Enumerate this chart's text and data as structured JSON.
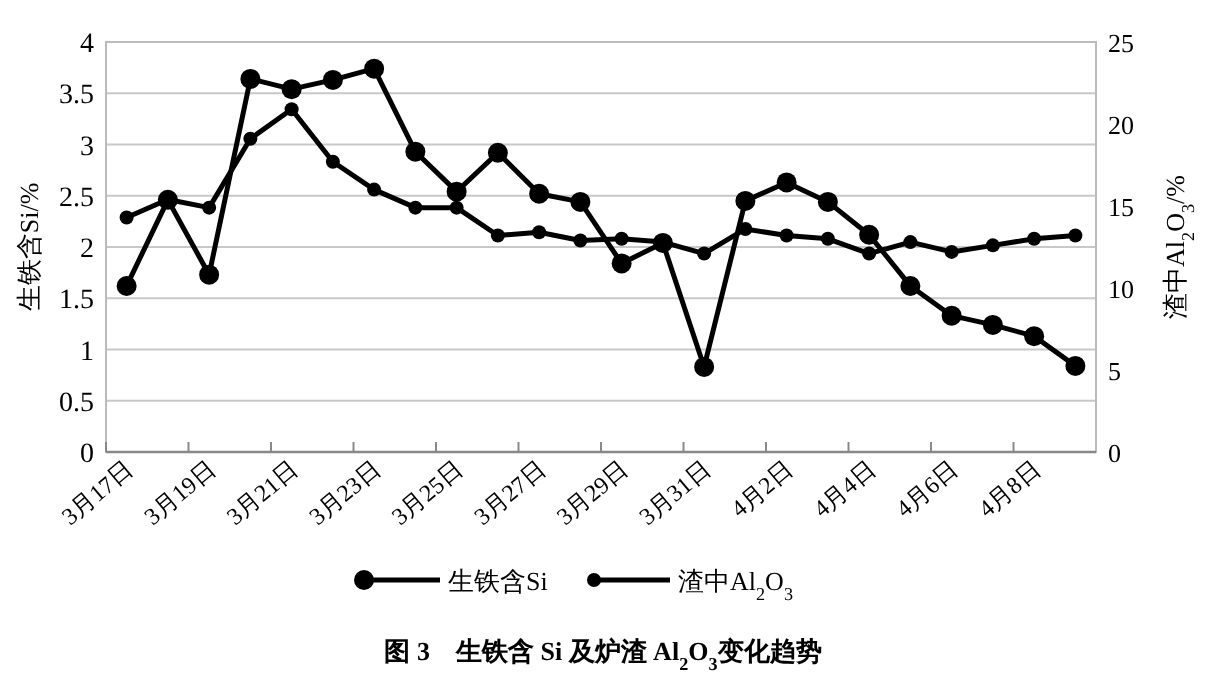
{
  "chart_data": {
    "type": "line",
    "title": "图 3　生铁含 Si 及炉渣 Al$_{2}$O$_{3}$变化趋势",
    "ylabel": "生铁含Si/%",
    "y2label": "渣中Al$_{2}$O$_{3}$/%",
    "categories": [
      "3月17日",
      null,
      "3月19日",
      null,
      "3月21日",
      null,
      "3月23日",
      null,
      "3月25日",
      null,
      "3月27日",
      null,
      "3月29日",
      null,
      "3月31日",
      null,
      "4月2日",
      null,
      "4月4日",
      null,
      "4月6日",
      null,
      "4月8日",
      null
    ],
    "series": [
      {
        "name": "生铁含Si",
        "color": "#000000",
        "values": [
          1.62,
          2.46,
          1.73,
          3.64,
          3.54,
          3.63,
          3.74,
          2.93,
          2.54,
          2.92,
          2.52,
          2.44,
          1.84,
          2.04,
          0.83,
          2.45,
          2.63,
          2.44,
          2.12,
          1.62,
          1.33,
          1.24,
          1.13,
          0.84
        ]
      },
      {
        "name": "渣中Al$_{2}$O$_{3}$",
        "color": "#000000",
        "axis": "y2",
        "values": [
          14.3,
          15.4,
          14.9,
          19.1,
          20.9,
          17.7,
          16.0,
          14.9,
          14.9,
          13.2,
          13.4,
          12.9,
          13.0,
          12.8,
          12.1,
          13.6,
          13.2,
          13.0,
          12.1,
          12.8,
          12.2,
          12.6,
          13.0,
          13.2
        ]
      }
    ],
    "ylim": [
      0,
      4
    ],
    "yticks": [
      0,
      0.5,
      1,
      1.5,
      2,
      2.5,
      3,
      3.5,
      4
    ],
    "y2lim": [
      0,
      25
    ],
    "y2ticks": [
      0,
      5,
      10,
      15,
      20,
      25
    ],
    "grid": "y",
    "legend": "bottom",
    "marker": "circle",
    "line_style": "solid"
  }
}
